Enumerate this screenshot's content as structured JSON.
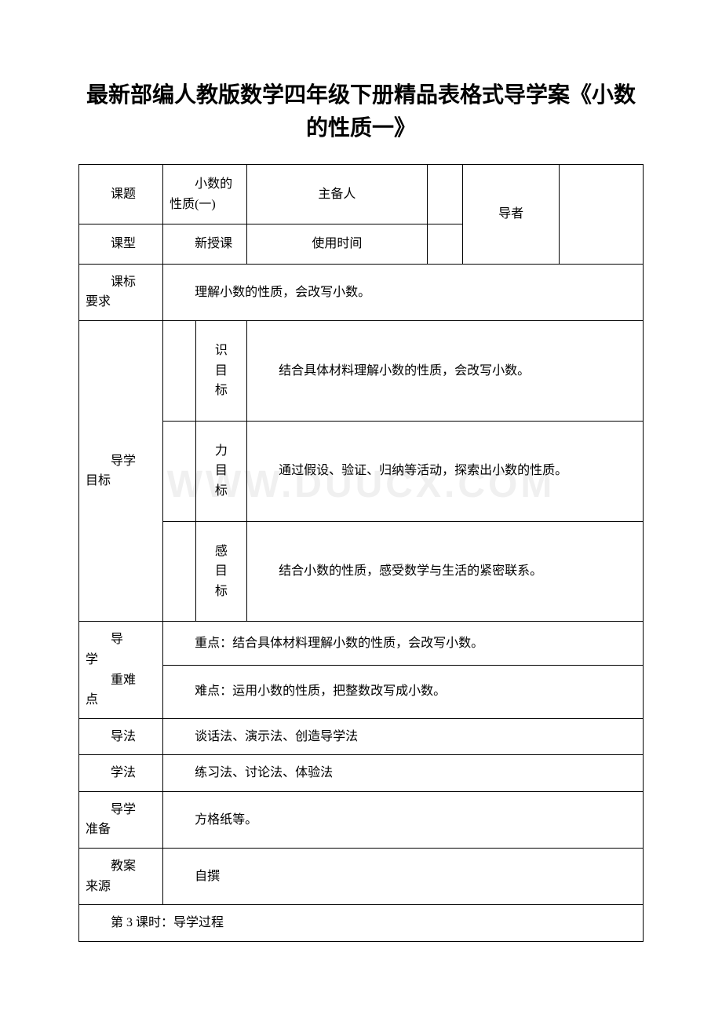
{
  "title": "最新部编人教版数学四年级下册精品表格式导学案《小数的性质一》",
  "watermark": "WWW.DUUCX.COM",
  "table": {
    "row1": {
      "label1": "课题",
      "value1": "小数的性质(一)",
      "label2": "主备人",
      "value2": "",
      "label3": "导者",
      "value3": ""
    },
    "row2": {
      "label1": "课型",
      "value1": "新授课",
      "label2": "使用时间",
      "value2": ""
    },
    "row3": {
      "label": "课标要求",
      "value": "理解小数的性质，会改写小数。"
    },
    "goals": {
      "label": "导学目标",
      "item1": {
        "sublabel": "识目标",
        "content": "结合具体材料理解小数的性质，会改写小数。"
      },
      "item2": {
        "sublabel": "力目标",
        "content": "通过假设、验证、归纳等活动，探索出小数的性质。"
      },
      "item3": {
        "sublabel": "感目标",
        "content": "结合小数的性质，感受数学与生活的紧密联系。"
      }
    },
    "difficulty": {
      "label": "导学\n重难点",
      "line1": "重点：结合具体材料理解小数的性质，会改写小数。",
      "line2": "难点：运用小数的性质，把整数改写成小数。"
    },
    "row_daofa": {
      "label": "导法",
      "value": "谈话法、演示法、创造导学法"
    },
    "row_xuefa": {
      "label": "学法",
      "value": "练习法、讨论法、体验法"
    },
    "row_zhunbei": {
      "label": "导学准备",
      "value": "方格纸等。"
    },
    "row_laiyuan": {
      "label": "教案来源",
      "value": "自撰"
    },
    "row_process": {
      "value": "第 3 课时：导学过程"
    }
  }
}
